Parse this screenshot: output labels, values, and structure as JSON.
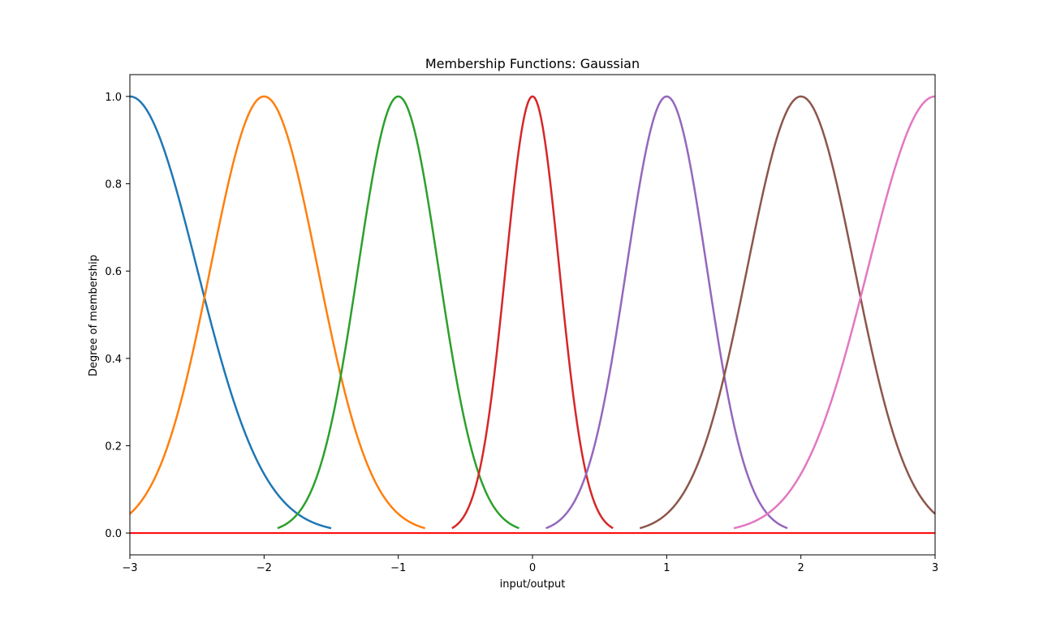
{
  "chart_data": {
    "type": "line",
    "title": "Membership Functions: Gaussian",
    "xlabel": "input/output",
    "ylabel": "Degree of membership",
    "xlim": [
      -3,
      3
    ],
    "ylim": [
      -0.05,
      1.05
    ],
    "xticks": [
      -3,
      -2,
      -1,
      0,
      1,
      2,
      3
    ],
    "xtick_labels": [
      "−3",
      "−2",
      "−1",
      "0",
      "1",
      "2",
      "3"
    ],
    "yticks": [
      0.0,
      0.2,
      0.4,
      0.6,
      0.8,
      1.0
    ],
    "ytick_labels": [
      "0.0",
      "0.2",
      "0.4",
      "0.6",
      "0.8",
      "1.0"
    ],
    "grid": false,
    "legend": "none",
    "series": [
      {
        "color": "#1f77b4",
        "mean": -3,
        "sigma": 0.5,
        "x_range": [
          -3,
          -1.5
        ]
      },
      {
        "color": "#ff7f0e",
        "mean": -2,
        "sigma": 0.4,
        "x_range": [
          -3,
          -0.8
        ]
      },
      {
        "color": "#2ca02c",
        "mean": -1,
        "sigma": 0.3,
        "x_range": [
          -1.9,
          -0.1
        ]
      },
      {
        "color": "#d62728",
        "mean": 0,
        "sigma": 0.2,
        "x_range": [
          -0.6,
          0.6
        ]
      },
      {
        "color": "#9467bd",
        "mean": 1,
        "sigma": 0.3,
        "x_range": [
          0.1,
          1.9
        ]
      },
      {
        "color": "#8c564b",
        "mean": 2,
        "sigma": 0.4,
        "x_range": [
          0.8,
          3
        ]
      },
      {
        "color": "#e377c2",
        "mean": 3,
        "sigma": 0.5,
        "x_range": [
          1.5,
          3
        ]
      }
    ],
    "baseline": {
      "y": 0,
      "color": "#ff0000"
    }
  }
}
